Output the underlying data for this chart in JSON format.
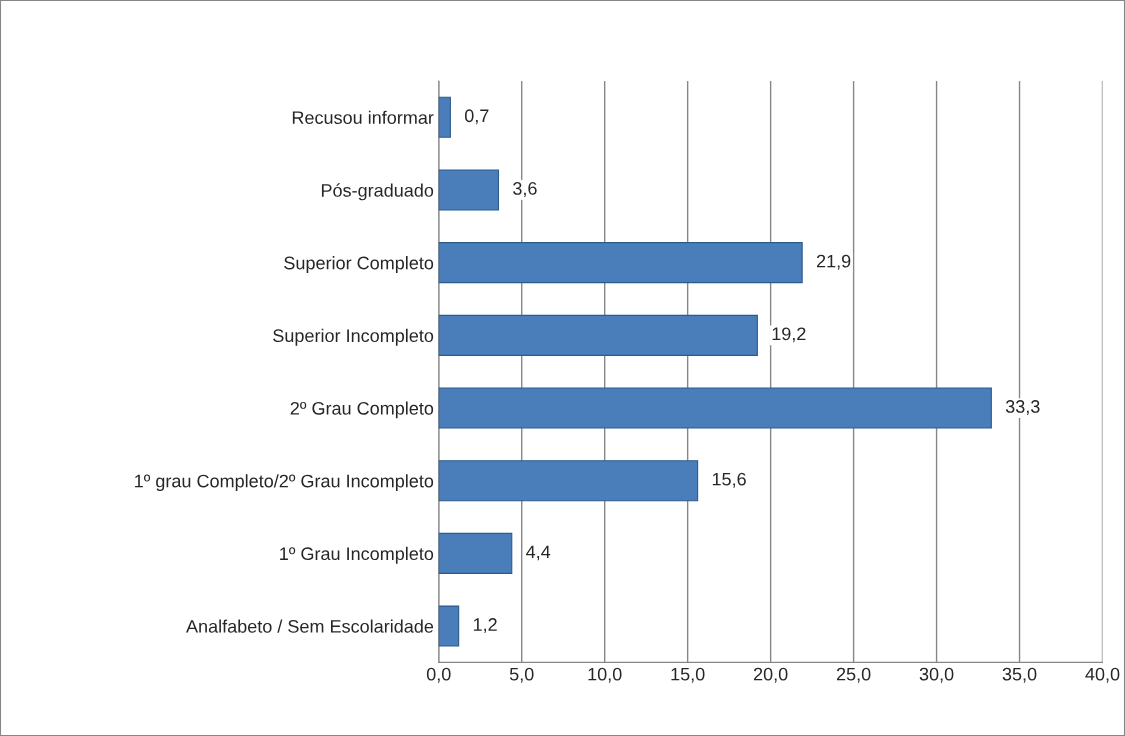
{
  "chart_data": {
    "type": "bar",
    "orientation": "horizontal",
    "categories": [
      "Recusou informar",
      "Pós-graduado",
      "Superior Completo",
      "Superior Incompleto",
      "2º Grau Completo",
      "1º grau Completo/2º Grau Incompleto",
      "1º Grau Incompleto",
      "Analfabeto / Sem Escolaridade"
    ],
    "values": [
      0.7,
      3.6,
      21.9,
      19.2,
      33.3,
      15.6,
      4.4,
      1.2
    ],
    "value_labels": [
      "0,7",
      "3,6",
      "21,9",
      "19,2",
      "33,3",
      "15,6",
      "4,4",
      "1,2"
    ],
    "color": "#4a7ebb",
    "xlim": [
      0,
      40
    ],
    "xticks": [
      {
        "value": 0,
        "label": "0,0"
      },
      {
        "value": 5,
        "label": "5,0"
      },
      {
        "value": 10,
        "label": "10,0"
      },
      {
        "value": 15,
        "label": "15,0"
      },
      {
        "value": 20,
        "label": "20,0"
      },
      {
        "value": 25,
        "label": "25,0"
      },
      {
        "value": 30,
        "label": "30,0"
      },
      {
        "value": 35,
        "label": "35,0"
      },
      {
        "value": 40,
        "label": "40,0"
      }
    ],
    "grid": "x",
    "legend": false
  }
}
